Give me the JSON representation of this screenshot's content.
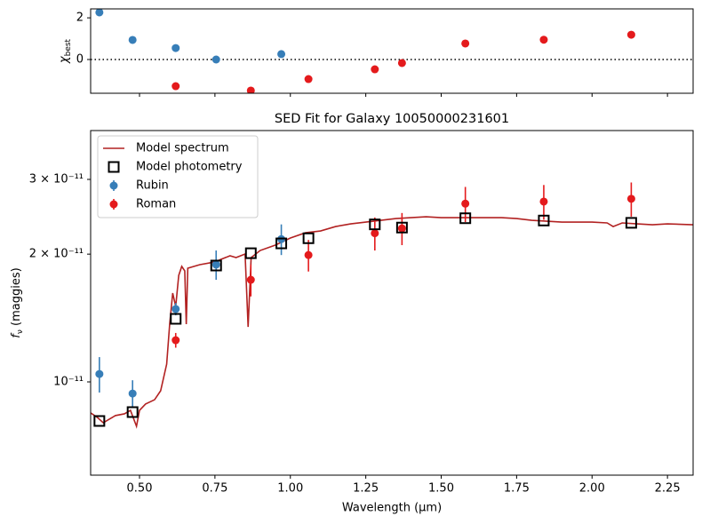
{
  "chart_data": [
    {
      "type": "scatter",
      "ylabel": "χ",
      "ylabel_sub": "best",
      "xlim": [
        0.338,
        2.335
      ],
      "ylim": [
        -1.62,
        2.43
      ],
      "yticks": [
        0,
        2
      ],
      "xticks": [
        0.5,
        0.75,
        1.0,
        1.25,
        1.5,
        1.75,
        2.0,
        2.25
      ],
      "series": [
        {
          "color": "#377eb8",
          "x": [
            0.367,
            0.477,
            0.62,
            0.754,
            0.97
          ],
          "values": [
            2.26,
            0.94,
            0.55,
            0.0,
            0.26
          ]
        },
        {
          "color": "#e41a1c",
          "x": [
            0.62,
            0.869,
            1.06,
            1.28,
            1.37,
            1.58,
            1.84,
            2.13
          ],
          "values": [
            -1.28,
            -1.49,
            -0.94,
            -0.47,
            -0.17,
            0.77,
            0.95,
            1.19
          ]
        }
      ]
    },
    {
      "type": "combo",
      "title": "SED Fit for Galaxy 10050000231601",
      "xlabel": "Wavelength (μm)",
      "ylabel": "f",
      "ylabel_sub": "ν",
      "ylabel_unit": " (maggies)",
      "log_y": true,
      "legend": "upper left",
      "xlim": [
        0.338,
        2.335
      ],
      "ylim": [
        6.03e-12,
        3.91e-11
      ],
      "xticks": [
        {
          "value": 0.5,
          "label": "0.50"
        },
        {
          "value": 0.75,
          "label": "0.75"
        },
        {
          "value": 1.0,
          "label": "1.00"
        },
        {
          "value": 1.25,
          "label": "1.25"
        },
        {
          "value": 1.5,
          "label": "1.50"
        },
        {
          "value": 1.75,
          "label": "1.75"
        },
        {
          "value": 2.0,
          "label": "2.00"
        },
        {
          "value": 2.25,
          "label": "2.25"
        }
      ],
      "yticks": [
        {
          "value": 1e-11,
          "label": "10⁻¹¹"
        },
        {
          "value": 2e-11,
          "label": "2 × 10⁻¹¹"
        },
        {
          "value": 3e-11,
          "label": "3 × 10⁻¹¹"
        }
      ],
      "series": [
        {
          "name": "Model spectrum",
          "kind": "line",
          "color": "#b22222",
          "x": [
            0.338,
            0.36,
            0.38,
            0.4,
            0.42,
            0.45,
            0.47,
            0.49,
            0.5,
            0.52,
            0.55,
            0.57,
            0.59,
            0.6,
            0.61,
            0.62,
            0.63,
            0.64,
            0.65,
            0.655,
            0.66,
            0.7,
            0.75,
            0.77,
            0.8,
            0.82,
            0.85,
            0.86,
            0.87,
            0.9,
            0.95,
            1.0,
            1.05,
            1.1,
            1.15,
            1.2,
            1.25,
            1.3,
            1.35,
            1.4,
            1.45,
            1.5,
            1.55,
            1.6,
            1.65,
            1.7,
            1.75,
            1.8,
            1.85,
            1.9,
            1.95,
            2.0,
            2.05,
            2.07,
            2.1,
            2.15,
            2.2,
            2.25,
            2.335
          ],
          "values": [
            8.45e-12,
            8.25e-12,
            8.01e-12,
            8.17e-12,
            8.33e-12,
            8.41e-12,
            8.57e-12,
            7.86e-12,
            8.57e-12,
            8.87e-12,
            9.08e-12,
            9.53e-12,
            1.101e-11,
            1.368e-11,
            1.619e-11,
            1.506e-11,
            1.782e-11,
            1.871e-11,
            1.826e-11,
            1.368e-11,
            1.853e-11,
            1.889e-11,
            1.917e-11,
            1.944e-11,
            1.982e-11,
            1.963e-11,
            2.001e-11,
            1.348e-11,
            1.963e-11,
            2.04e-11,
            2.1e-11,
            2.183e-11,
            2.246e-11,
            2.268e-11,
            2.323e-11,
            2.357e-11,
            2.38e-11,
            2.403e-11,
            2.426e-11,
            2.438e-11,
            2.45e-11,
            2.438e-11,
            2.438e-11,
            2.438e-11,
            2.438e-11,
            2.438e-11,
            2.426e-11,
            2.403e-11,
            2.391e-11,
            2.38e-11,
            2.38e-11,
            2.38e-11,
            2.369e-11,
            2.323e-11,
            2.369e-11,
            2.357e-11,
            2.346e-11,
            2.357e-11,
            2.346e-11
          ]
        },
        {
          "name": "Model photometry",
          "kind": "squares",
          "color": "#000000",
          "x": [
            0.367,
            0.477,
            0.62,
            0.754,
            0.869,
            0.97,
            1.06,
            1.28,
            1.37,
            1.58,
            1.84,
            2.13
          ],
          "values": [
            8.09e-12,
            8.49e-12,
            1.408e-11,
            1.88e-11,
            2.01e-11,
            2.12e-11,
            2.18e-11,
            2.35e-11,
            2.31e-11,
            2.43e-11,
            2.4e-11,
            2.37e-11
          ]
        },
        {
          "name": "Rubin",
          "kind": "errorbar",
          "color": "#377eb8",
          "x": [
            0.367,
            0.477,
            0.62,
            0.754,
            0.97
          ],
          "values": [
            1.044e-11,
            9.39e-12,
            1.485e-11,
            1.89e-11,
            2.17e-11
          ],
          "errors": [
            1e-12,
            7e-13,
            5e-13,
            1.5e-12,
            1.8e-12
          ]
        },
        {
          "name": "Roman",
          "kind": "errorbar",
          "color": "#e41a1c",
          "x": [
            0.62,
            0.869,
            1.06,
            1.28,
            1.37,
            1.58,
            1.84,
            2.13
          ],
          "values": [
            1.254e-11,
            1.74e-11,
            1.99e-11,
            2.24e-11,
            2.3e-11,
            2.63e-11,
            2.66e-11,
            2.7e-11
          ],
          "errors": [
            5e-13,
            1.5e-12,
            1.7e-12,
            2e-12,
            2e-12,
            2.5e-12,
            2.5e-12,
            2.5e-12
          ]
        }
      ]
    }
  ]
}
